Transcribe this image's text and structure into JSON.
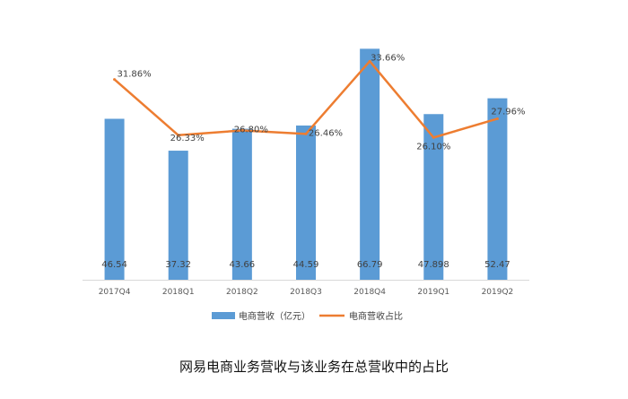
{
  "caption": "网易电商业务营收与该业务在总营收中的占比",
  "colors": {
    "bar": "#5B9BD5",
    "line": "#ED7D31",
    "axis": "#D9D9D9"
  },
  "chart_data": {
    "type": "bar",
    "categories": [
      "2017Q4",
      "2018Q1",
      "2018Q2",
      "2018Q3",
      "2018Q4",
      "2019Q1",
      "2019Q2"
    ],
    "series": [
      {
        "name": "电商营收（亿元）",
        "type": "bar",
        "axis": "primary",
        "values": [
          46.54,
          37.32,
          43.66,
          44.59,
          66.79,
          47.898,
          52.47
        ],
        "value_labels": [
          "46.54",
          "37.32",
          "43.66",
          "44.59",
          "66.79",
          "47.898",
          "52.47"
        ]
      },
      {
        "name": "电商营收占比",
        "type": "line",
        "axis": "secondary",
        "values": [
          31.86,
          26.33,
          26.8,
          26.46,
          33.66,
          26.1,
          27.96
        ],
        "value_labels": [
          "31.86%",
          "26.33%",
          "26.80%",
          "26.46%",
          "33.66%",
          "26.10%",
          "27.96%"
        ]
      }
    ],
    "title": "",
    "xlabel": "",
    "ylabel": "",
    "ylim": [
      0,
      70
    ],
    "y2lim": [
      12,
      36
    ],
    "grid": false,
    "legend_position": "bottom"
  }
}
